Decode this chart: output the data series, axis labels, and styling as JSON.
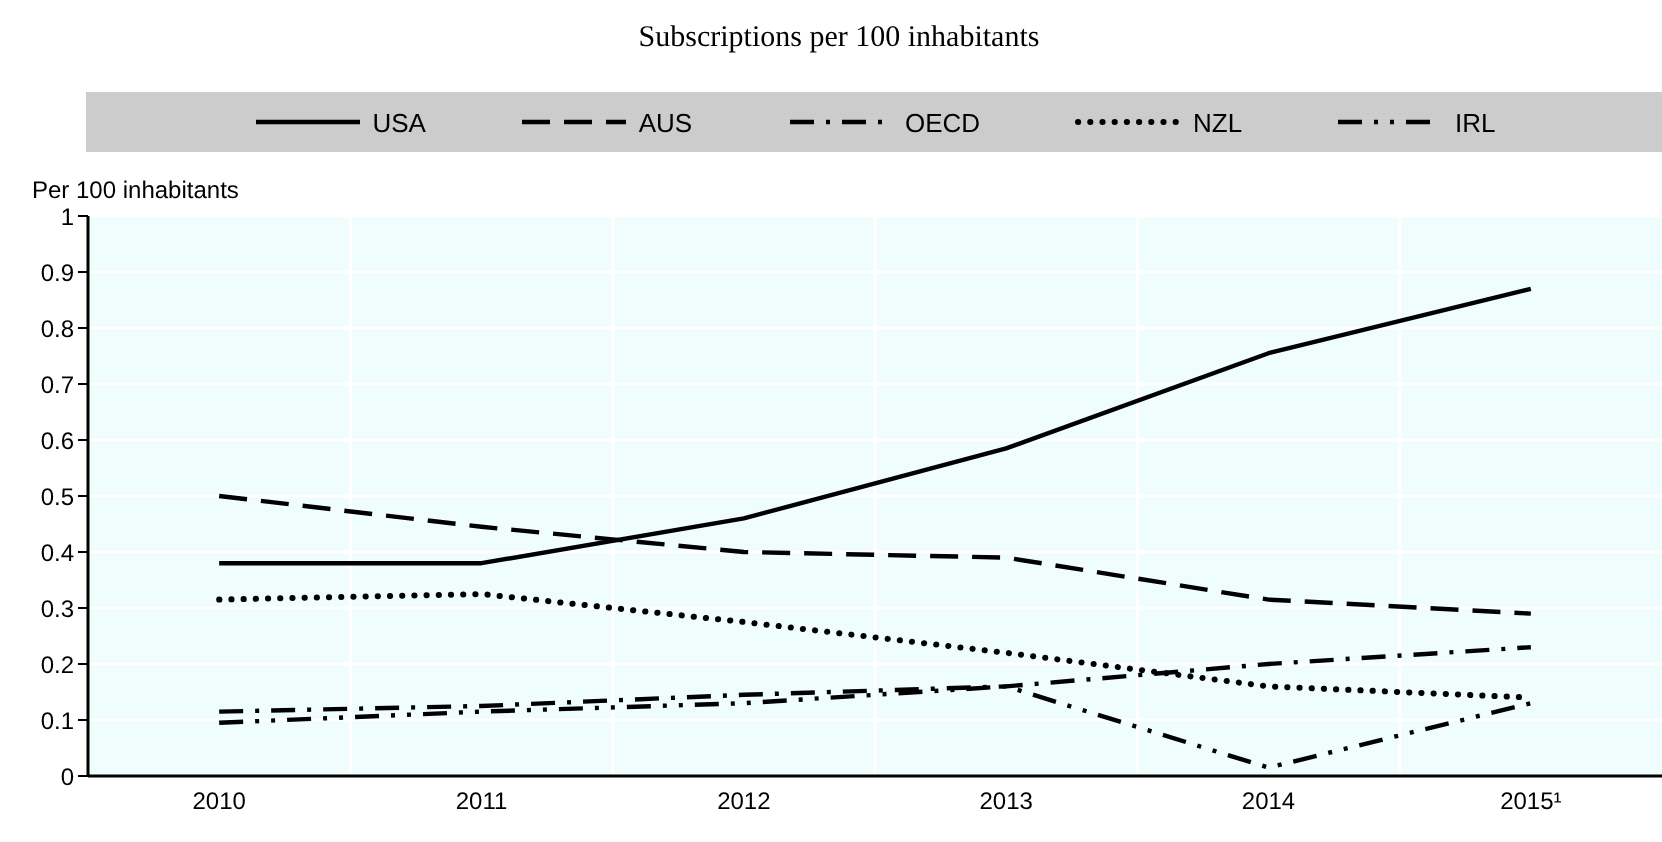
{
  "chart_data": {
    "type": "line",
    "title": "Subscriptions per 100 inhabitants",
    "ylabel": "Per 100 inhabitants",
    "categories": [
      "2010",
      "2011",
      "2012",
      "2013",
      "2014",
      "2015¹"
    ],
    "series": [
      {
        "name": "USA",
        "color": "#000000",
        "line_style": "solid",
        "values": [
          0.38,
          0.38,
          0.46,
          0.585,
          0.755,
          0.87
        ]
      },
      {
        "name": "AUS",
        "color": "#000000",
        "line_style": "dashed",
        "values": [
          0.5,
          0.445,
          0.4,
          0.39,
          0.315,
          0.29
        ]
      },
      {
        "name": "OECD",
        "color": "#000000",
        "line_style": "dashdot",
        "values": [
          0.115,
          0.125,
          0.145,
          0.16,
          0.2,
          0.23
        ]
      },
      {
        "name": "NZL",
        "color": "#000000",
        "line_style": "dotted",
        "values": [
          0.315,
          0.325,
          0.275,
          0.22,
          0.16,
          0.14
        ]
      },
      {
        "name": "IRL",
        "color": "#000000",
        "line_style": "dashdotdot",
        "values": [
          0.095,
          0.115,
          0.13,
          0.16,
          0.015,
          0.13
        ]
      }
    ],
    "ylim": [
      0,
      1
    ],
    "yticks": [
      0,
      0.1,
      0.2,
      0.3,
      0.4,
      0.5,
      0.6,
      0.7,
      0.8,
      0.9,
      1
    ],
    "grid": true,
    "legend": "top",
    "marker": "none"
  }
}
